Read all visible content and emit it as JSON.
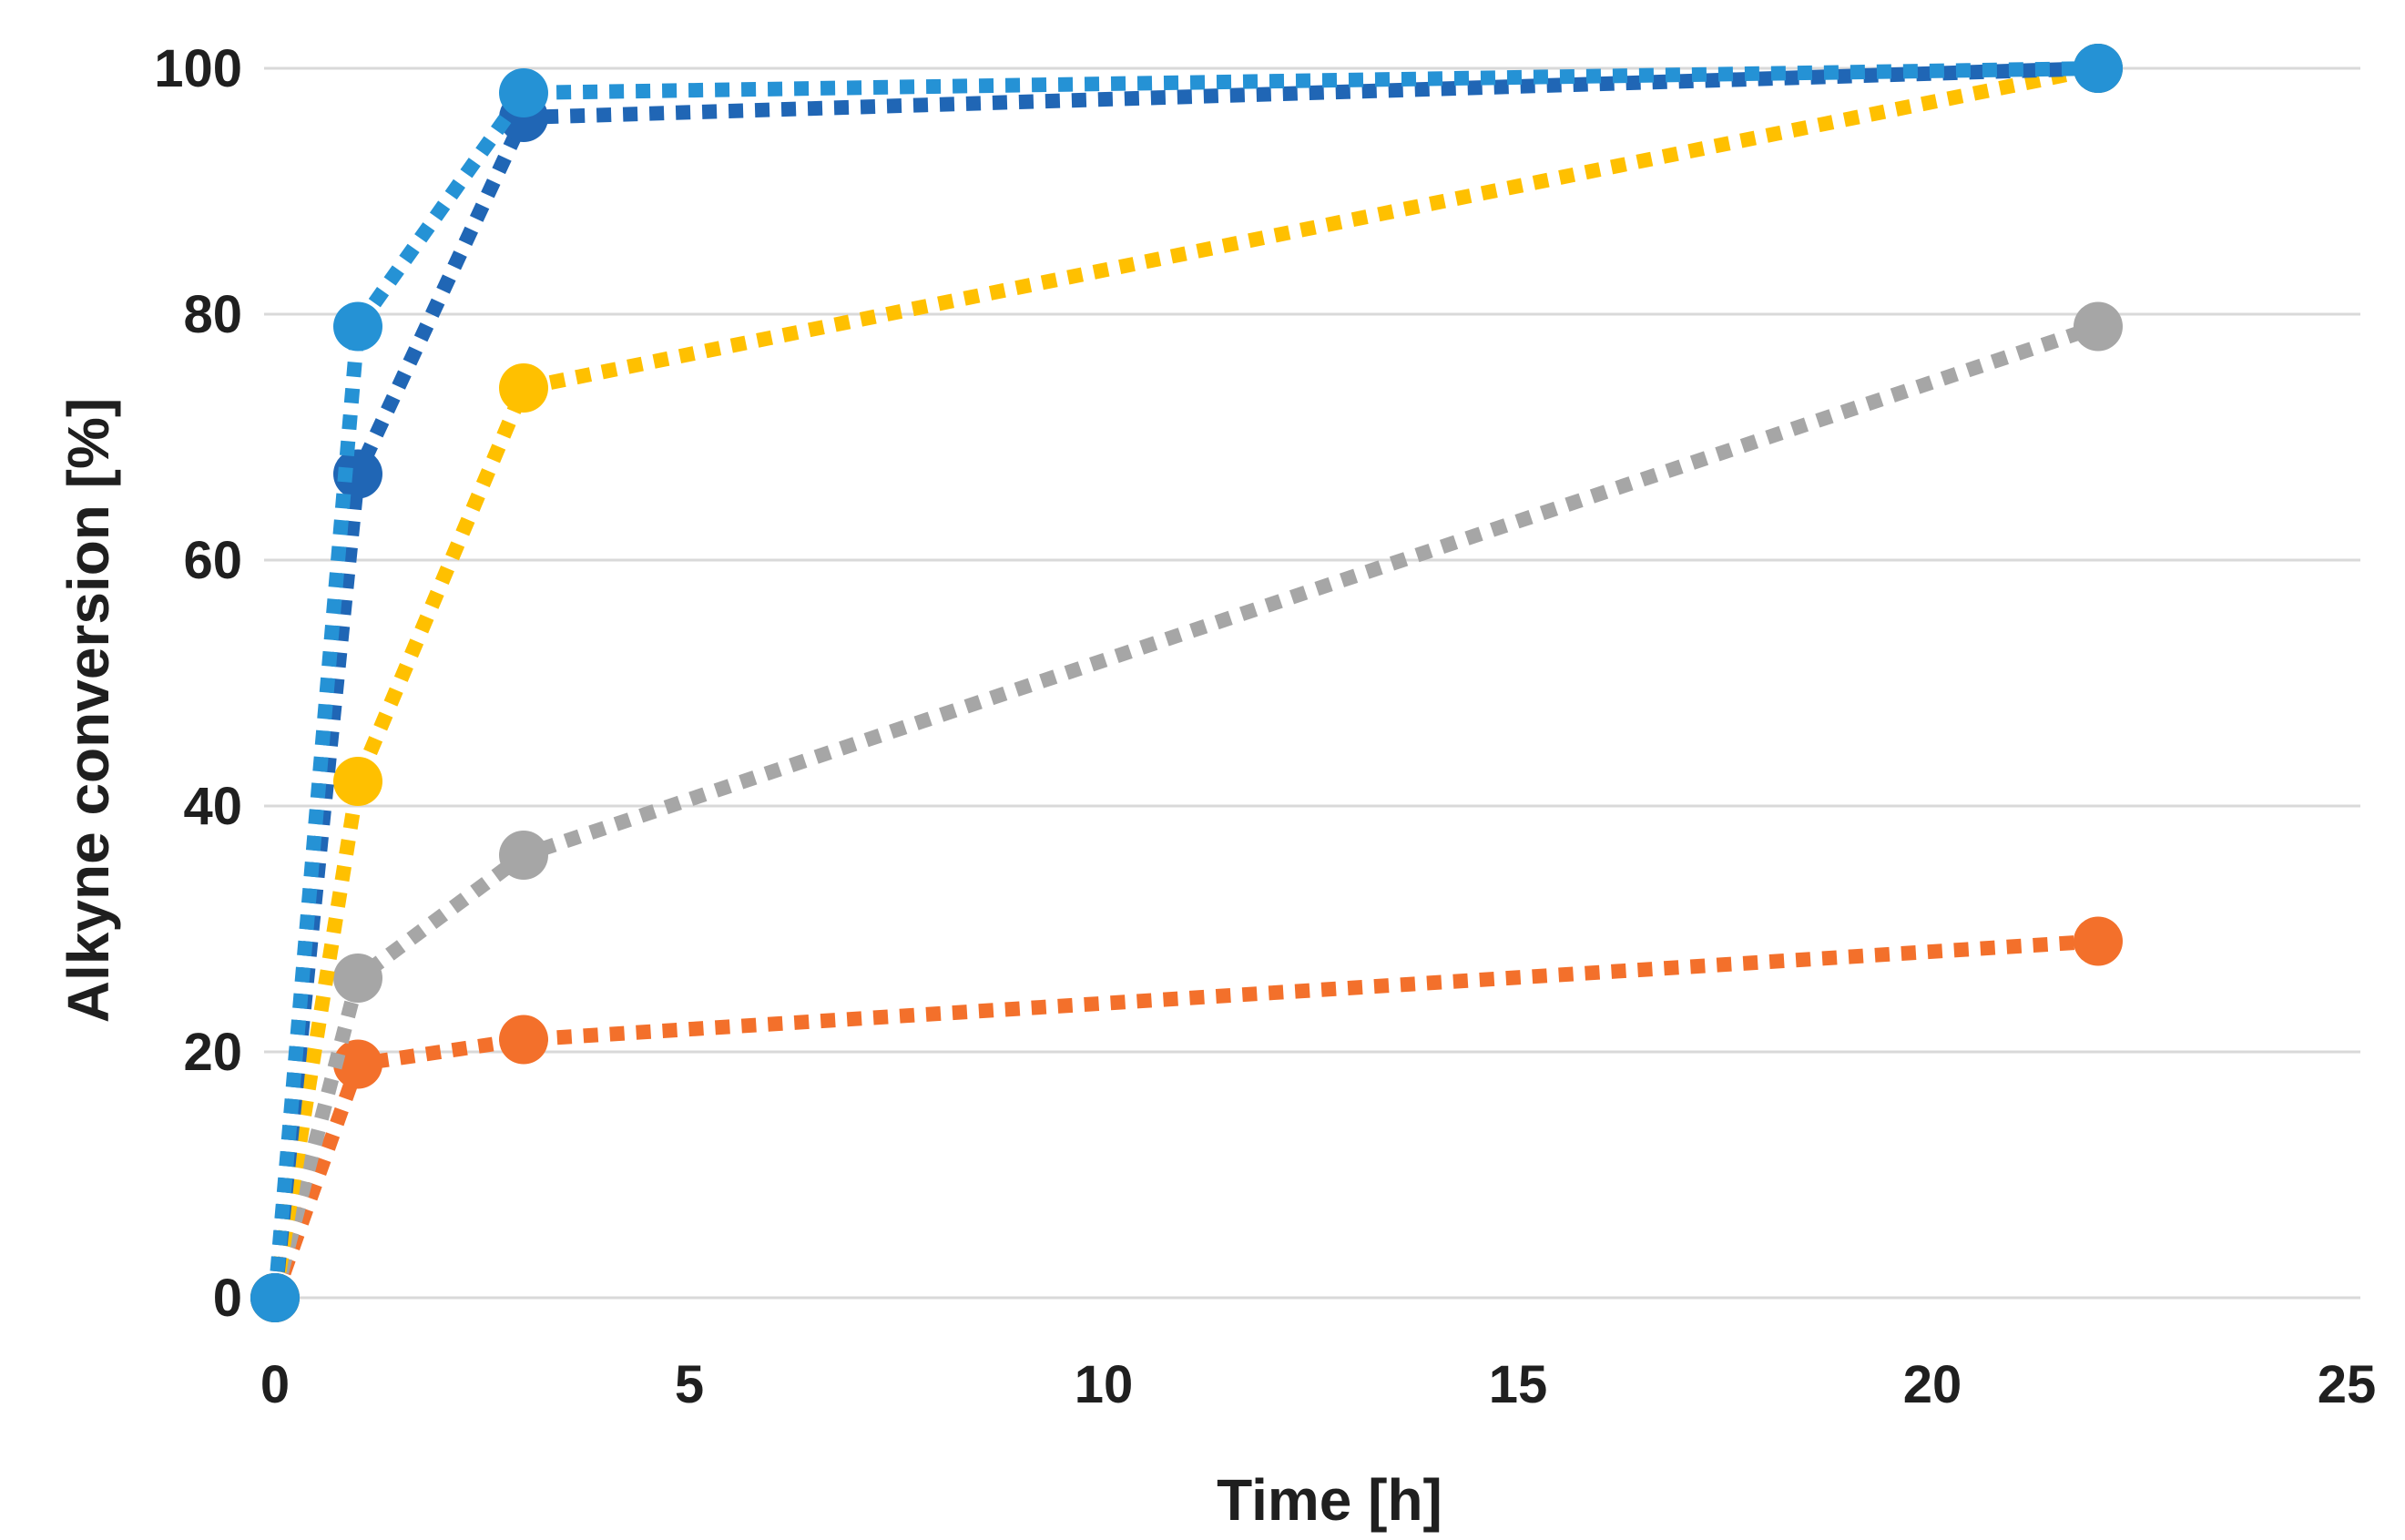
{
  "figure": {
    "background": "#FFFFFF",
    "gridline_color": "#D9D9D9",
    "text_color": "#1F1F1F"
  },
  "chart_data": {
    "type": "scatter",
    "title": "",
    "xlabel": "Time [h]",
    "ylabel": "Alkyne conversion [%]",
    "xlim": [
      0,
      25
    ],
    "ylim": [
      0,
      100
    ],
    "xticks": [
      0,
      5,
      10,
      15,
      20,
      25
    ],
    "yticks": [
      0,
      20,
      40,
      60,
      80,
      100
    ],
    "grid": "horizontal-only",
    "legend": "none",
    "line_style": "dotted",
    "marker": "circle",
    "series": [
      {
        "name": "orange",
        "color": "#F3702B",
        "x": [
          0,
          1,
          3,
          22
        ],
        "y": [
          0,
          19,
          21,
          29
        ]
      },
      {
        "name": "gray",
        "color": "#A6A6A6",
        "x": [
          0,
          1,
          3,
          22
        ],
        "y": [
          0,
          26,
          36,
          79
        ]
      },
      {
        "name": "yellow",
        "color": "#FFC000",
        "x": [
          0,
          1,
          3,
          22
        ],
        "y": [
          0,
          42,
          74,
          100
        ]
      },
      {
        "name": "dark-blue",
        "color": "#2066B5",
        "x": [
          0,
          1,
          3,
          22
        ],
        "y": [
          0,
          67,
          96,
          100
        ]
      },
      {
        "name": "light-blue",
        "color": "#2592D5",
        "x": [
          0,
          1,
          3,
          22
        ],
        "y": [
          0,
          79,
          98,
          100
        ]
      }
    ]
  }
}
